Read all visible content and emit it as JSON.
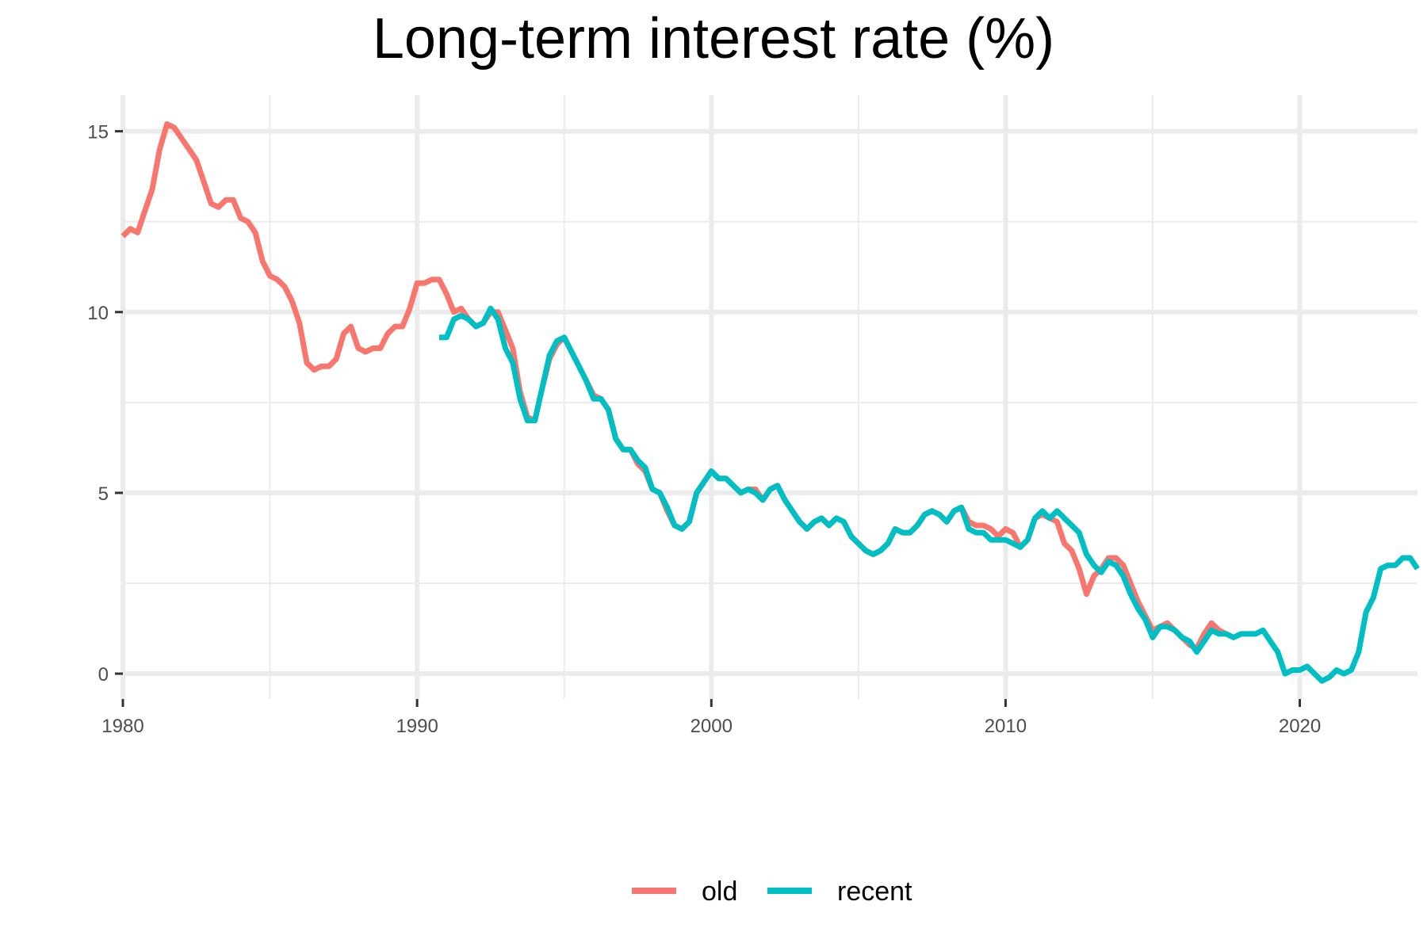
{
  "chart_data": {
    "type": "line",
    "title": "Long-term interest rate (%)",
    "xlabel": "",
    "ylabel": "",
    "xlim": [
      1980,
      2024
    ],
    "ylim": [
      -0.7,
      16
    ],
    "x_ticks": [
      1980,
      1990,
      2000,
      2010,
      2020
    ],
    "y_ticks": [
      0,
      5,
      10,
      15
    ],
    "grid": true,
    "legend_position": "bottom",
    "series": [
      {
        "name": "old",
        "color": "#F8766D",
        "x": [
          1980,
          1980.25,
          1980.5,
          1980.75,
          1981,
          1981.25,
          1981.5,
          1981.75,
          1982,
          1982.25,
          1982.5,
          1982.75,
          1983,
          1983.25,
          1983.5,
          1983.75,
          1984,
          1984.25,
          1984.5,
          1984.75,
          1985,
          1985.25,
          1985.5,
          1985.75,
          1986,
          1986.25,
          1986.5,
          1986.75,
          1987,
          1987.25,
          1987.5,
          1987.75,
          1988,
          1988.25,
          1988.5,
          1988.75,
          1989,
          1989.25,
          1989.5,
          1989.75,
          1990,
          1990.25,
          1990.5,
          1990.75,
          1991,
          1991.25,
          1991.5,
          1991.75,
          1992,
          1992.25,
          1992.5,
          1992.75,
          1993,
          1993.25,
          1993.5,
          1993.75,
          1994,
          1994.25,
          1994.5,
          1994.75,
          1995,
          1995.25,
          1995.5,
          1995.75,
          1996,
          1996.25,
          1996.5,
          1996.75,
          1997,
          1997.25,
          1997.5,
          1997.75,
          1998,
          1998.25,
          1998.5,
          1998.75,
          1999,
          1999.25,
          1999.5,
          1999.75,
          2000,
          2000.25,
          2000.5,
          2000.75,
          2001,
          2001.25,
          2001.5,
          2001.75,
          2002,
          2002.25,
          2002.5,
          2002.75,
          2003,
          2003.25,
          2003.5,
          2003.75,
          2004,
          2004.25,
          2004.5,
          2004.75,
          2005,
          2005.25,
          2005.5,
          2005.75,
          2006,
          2006.25,
          2006.5,
          2006.75,
          2007,
          2007.25,
          2007.5,
          2007.75,
          2008,
          2008.25,
          2008.5,
          2008.75,
          2009,
          2009.25,
          2009.5,
          2009.75,
          2010,
          2010.25,
          2010.5,
          2010.75,
          2011,
          2011.25,
          2011.5,
          2011.75,
          2012,
          2012.25,
          2012.5,
          2012.75,
          2013,
          2013.25,
          2013.5,
          2013.75,
          2014,
          2014.25,
          2014.5,
          2014.75,
          2015,
          2015.25,
          2015.5,
          2015.75,
          2016,
          2016.25,
          2016.5,
          2016.75,
          2017,
          2017.25,
          2017.5
        ],
        "values": [
          12.1,
          12.3,
          12.2,
          12.8,
          13.4,
          14.5,
          15.2,
          15.1,
          14.8,
          14.5,
          14.2,
          13.6,
          13.0,
          12.9,
          13.1,
          13.1,
          12.6,
          12.5,
          12.2,
          11.4,
          11.0,
          10.9,
          10.7,
          10.3,
          9.7,
          8.6,
          8.4,
          8.5,
          8.5,
          8.7,
          9.4,
          9.6,
          9.0,
          8.9,
          9.0,
          9.0,
          9.4,
          9.6,
          9.6,
          10.1,
          10.8,
          10.8,
          10.9,
          10.9,
          10.5,
          10.0,
          10.1,
          9.8,
          9.6,
          9.7,
          10.0,
          10.0,
          9.5,
          9.0,
          7.8,
          7.1,
          7.0,
          7.9,
          8.7,
          9.1,
          9.3,
          8.9,
          8.5,
          8.1,
          7.7,
          7.6,
          7.3,
          6.5,
          6.2,
          6.2,
          5.8,
          5.6,
          5.1,
          5.0,
          4.5,
          4.1,
          4.0,
          4.2,
          5.0,
          5.3,
          5.6,
          5.4,
          5.4,
          5.2,
          5.0,
          5.1,
          5.1,
          4.8,
          5.1,
          5.2,
          4.8,
          4.5,
          4.2,
          4.0,
          4.2,
          4.3,
          4.1,
          4.3,
          4.2,
          3.8,
          3.6,
          3.4,
          3.3,
          3.4,
          3.6,
          4.0,
          3.9,
          3.9,
          4.1,
          4.4,
          4.5,
          4.4,
          4.2,
          4.5,
          4.6,
          4.2,
          4.1,
          4.1,
          4.0,
          3.8,
          4.0,
          3.9,
          3.5,
          3.7,
          4.3,
          4.4,
          4.3,
          4.2,
          3.6,
          3.4,
          2.9,
          2.2,
          2.7,
          2.9,
          3.2,
          3.2,
          3.0,
          2.5,
          2.0,
          1.6,
          1.2,
          1.3,
          1.4,
          1.2,
          1.0,
          0.8,
          0.7,
          1.1,
          1.4,
          1.2,
          1.1
        ]
      },
      {
        "name": "recent",
        "color": "#00BFC4",
        "x": [
          1990.75,
          1991,
          1991.25,
          1991.5,
          1991.75,
          1992,
          1992.25,
          1992.5,
          1992.75,
          1993,
          1993.25,
          1993.5,
          1993.75,
          1994,
          1994.25,
          1994.5,
          1994.75,
          1995,
          1995.25,
          1995.5,
          1995.75,
          1996,
          1996.25,
          1996.5,
          1996.75,
          1997,
          1997.25,
          1997.5,
          1997.75,
          1998,
          1998.25,
          1998.5,
          1998.75,
          1999,
          1999.25,
          1999.5,
          1999.75,
          2000,
          2000.25,
          2000.5,
          2000.75,
          2001,
          2001.25,
          2001.5,
          2001.75,
          2002,
          2002.25,
          2002.5,
          2002.75,
          2003,
          2003.25,
          2003.5,
          2003.75,
          2004,
          2004.25,
          2004.5,
          2004.75,
          2005,
          2005.25,
          2005.5,
          2005.75,
          2006,
          2006.25,
          2006.5,
          2006.75,
          2007,
          2007.25,
          2007.5,
          2007.75,
          2008,
          2008.25,
          2008.5,
          2008.75,
          2009,
          2009.25,
          2009.5,
          2009.75,
          2010,
          2010.25,
          2010.5,
          2010.75,
          2011,
          2011.25,
          2011.5,
          2011.75,
          2012,
          2012.25,
          2012.5,
          2012.75,
          2013,
          2013.25,
          2013.5,
          2013.75,
          2014,
          2014.25,
          2014.5,
          2014.75,
          2015,
          2015.25,
          2015.5,
          2015.75,
          2016,
          2016.25,
          2016.5,
          2016.75,
          2017,
          2017.25,
          2017.5,
          2017.75,
          2018,
          2018.25,
          2018.5,
          2018.75,
          2019,
          2019.25,
          2019.5,
          2019.75,
          2020,
          2020.25,
          2020.5,
          2020.75,
          2021,
          2021.25,
          2021.5,
          2021.75,
          2022,
          2022.25,
          2022.5,
          2022.75,
          2023,
          2023.25,
          2023.5,
          2023.75,
          2024
        ],
        "values": [
          9.3,
          9.3,
          9.8,
          9.9,
          9.8,
          9.6,
          9.7,
          10.1,
          9.8,
          9.0,
          8.6,
          7.6,
          7.0,
          7.0,
          7.9,
          8.8,
          9.2,
          9.3,
          8.9,
          8.5,
          8.1,
          7.6,
          7.6,
          7.3,
          6.5,
          6.2,
          6.2,
          5.9,
          5.7,
          5.1,
          5.0,
          4.6,
          4.1,
          4.0,
          4.2,
          5.0,
          5.3,
          5.6,
          5.4,
          5.4,
          5.2,
          5.0,
          5.1,
          5.0,
          4.8,
          5.1,
          5.2,
          4.8,
          4.5,
          4.2,
          4.0,
          4.2,
          4.3,
          4.1,
          4.3,
          4.2,
          3.8,
          3.6,
          3.4,
          3.3,
          3.4,
          3.6,
          4.0,
          3.9,
          3.9,
          4.1,
          4.4,
          4.5,
          4.4,
          4.2,
          4.5,
          4.6,
          4.0,
          3.9,
          3.9,
          3.7,
          3.7,
          3.7,
          3.6,
          3.5,
          3.7,
          4.3,
          4.5,
          4.3,
          4.5,
          4.3,
          4.1,
          3.9,
          3.3,
          3.0,
          2.8,
          3.1,
          3.0,
          2.7,
          2.2,
          1.8,
          1.5,
          1.0,
          1.3,
          1.3,
          1.2,
          1.0,
          0.9,
          0.6,
          0.9,
          1.2,
          1.1,
          1.1,
          1.0,
          1.1,
          1.1,
          1.1,
          1.2,
          0.9,
          0.6,
          0.0,
          0.1,
          0.1,
          0.2,
          0.0,
          -0.2,
          -0.1,
          0.1,
          0.0,
          0.1,
          0.6,
          1.7,
          2.1,
          2.9,
          3.0,
          3.0,
          3.2,
          3.2,
          2.9
        ]
      }
    ]
  }
}
